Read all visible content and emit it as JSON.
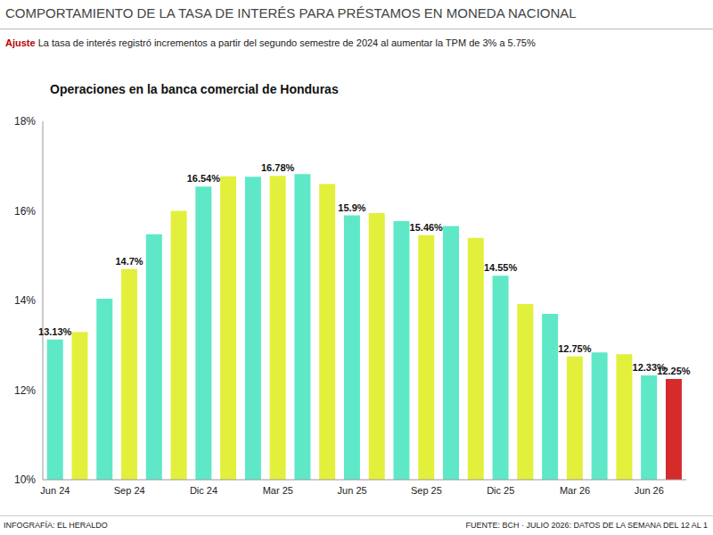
{
  "header": {
    "title": "COMPORTAMIENTO DE LA TASA DE INTERÉS PARA PRÉSTAMOS EN MONEDA NACIONAL",
    "subtitle_label": "Ajuste",
    "subtitle": "La tasa de interés registró incrementos a partir del segundo semestre de 2024 al aumentar la TPM de 3% a 5.75%"
  },
  "footer": {
    "credit": "INFOGRAFÍA: EL HERALDO",
    "source": "FUENTE: BCH · JULIO 2026: DATOS DE LA SEMANA DEL 12 AL 1"
  },
  "chart_data": {
    "type": "bar",
    "title": "Operaciones en la banca comercial de Honduras",
    "categories": [
      "Jun 24",
      null,
      null,
      "Sep 24",
      null,
      null,
      "Dic 24",
      null,
      null,
      "Mar 25",
      null,
      null,
      "Jun 25",
      null,
      null,
      "Sep 25",
      null,
      null,
      "Dic 25",
      null,
      null,
      "Mar 26",
      null,
      null,
      "Jun 26",
      null
    ],
    "values": [
      13.13,
      13.3,
      14.04,
      14.7,
      15.48,
      16.0,
      16.54,
      16.77,
      16.76,
      16.78,
      16.82,
      16.6,
      15.9,
      15.95,
      15.77,
      15.46,
      15.66,
      15.4,
      14.55,
      13.92,
      13.7,
      12.75,
      12.84,
      12.8,
      12.33,
      12.25
    ],
    "value_labels": [
      "13.13%",
      null,
      null,
      "14.7%",
      null,
      null,
      "16.54%",
      null,
      null,
      "16.78%",
      null,
      null,
      "15.9%",
      null,
      null,
      "15.46%",
      null,
      null,
      "14.55%",
      null,
      null,
      "12.75%",
      null,
      null,
      "12.33%",
      "12.25%"
    ],
    "data_labels": true,
    "colors": [
      "#5ee8c8",
      "#e2f03c",
      "#5ee8c8",
      "#e2f03c",
      "#5ee8c8",
      "#e2f03c",
      "#5ee8c8",
      "#e2f03c",
      "#5ee8c8",
      "#e2f03c",
      "#5ee8c8",
      "#e2f03c",
      "#5ee8c8",
      "#e2f03c",
      "#5ee8c8",
      "#e2f03c",
      "#5ee8c8",
      "#e2f03c",
      "#5ee8c8",
      "#e2f03c",
      "#5ee8c8",
      "#e2f03c",
      "#5ee8c8",
      "#e2f03c",
      "#5ee8c8",
      "#d62b2b"
    ],
    "ylim": [
      10,
      18
    ],
    "yticks": [
      {
        "value": 10,
        "label": "10%"
      },
      {
        "value": 12,
        "label": "12%"
      },
      {
        "value": 14,
        "label": "14%"
      },
      {
        "value": 16,
        "label": "16%"
      },
      {
        "value": 18,
        "label": "18%"
      }
    ],
    "grid": false
  }
}
